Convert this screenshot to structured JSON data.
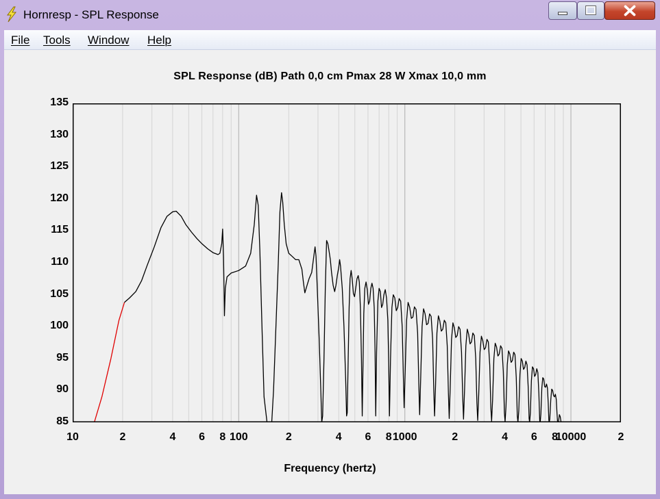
{
  "window": {
    "title": "Hornresp - SPL Response"
  },
  "titlebar_icons": [
    "lightning-icon",
    "minimize-icon",
    "maximize-icon",
    "close-icon"
  ],
  "menu": {
    "file": "File",
    "tools": "Tools",
    "window": "Window",
    "help": "Help"
  },
  "chart_data": {
    "type": "line",
    "title": "SPL Response (dB)   Path 0,0 cm   Pmax 28 W   Xmax 10,0 mm",
    "xlabel": "Frequency (hertz)",
    "ylabel": "",
    "x_scale": "log",
    "xlim": [
      10,
      20000
    ],
    "ylim": [
      85,
      135
    ],
    "grid": true,
    "y_ticks": [
      "135",
      "130",
      "125",
      "120",
      "115",
      "110",
      "105",
      "100",
      "95",
      "90",
      "85"
    ],
    "x_ticks": [
      {
        "value": 10,
        "label": "10"
      },
      {
        "value": 20,
        "label": "2"
      },
      {
        "value": 40,
        "label": "4"
      },
      {
        "value": 60,
        "label": "6"
      },
      {
        "value": 80,
        "label": "8"
      },
      {
        "value": 100,
        "label": "100"
      },
      {
        "value": 200,
        "label": "2"
      },
      {
        "value": 400,
        "label": "4"
      },
      {
        "value": 600,
        "label": "6"
      },
      {
        "value": 800,
        "label": "8"
      },
      {
        "value": 1000,
        "label": "1000"
      },
      {
        "value": 2000,
        "label": "2"
      },
      {
        "value": 4000,
        "label": "4"
      },
      {
        "value": 6000,
        "label": "6"
      },
      {
        "value": 8000,
        "label": "8"
      },
      {
        "value": 10000,
        "label": "10000"
      },
      {
        "value": 20000,
        "label": "2"
      }
    ],
    "series": [
      {
        "color": "#e00000",
        "points": [
          [
            13.5,
            85
          ],
          [
            15,
            89
          ],
          [
            17,
            95
          ],
          [
            19,
            101
          ],
          [
            20.5,
            103.8
          ]
        ]
      },
      {
        "color": "#000000",
        "points": [
          [
            20.5,
            103.8
          ],
          [
            22,
            104.5
          ],
          [
            24,
            105.5
          ],
          [
            26,
            107.2
          ],
          [
            28,
            109.5
          ],
          [
            31,
            112.5
          ],
          [
            34,
            115.5
          ],
          [
            37,
            117.3
          ],
          [
            40,
            118
          ],
          [
            42,
            118.1
          ],
          [
            45,
            117.3
          ],
          [
            48,
            116
          ],
          [
            52,
            114.8
          ],
          [
            56,
            113.8
          ],
          [
            60,
            113
          ],
          [
            65,
            112.2
          ],
          [
            70,
            111.6
          ],
          [
            75,
            111.3
          ],
          [
            77,
            111.5
          ],
          [
            79,
            113
          ],
          [
            80,
            115.3
          ],
          [
            81,
            111
          ],
          [
            82,
            101.7
          ],
          [
            83,
            106
          ],
          [
            85,
            107.8
          ],
          [
            90,
            108.4
          ],
          [
            100,
            108.8
          ],
          [
            110,
            109.5
          ],
          [
            118,
            111.5
          ],
          [
            124,
            116
          ],
          [
            128,
            120.6
          ],
          [
            131,
            119
          ],
          [
            134,
            112
          ],
          [
            138,
            100
          ],
          [
            142,
            89
          ],
          [
            148,
            85
          ],
          [
            155,
            84.8
          ],
          [
            158,
            85
          ],
          [
            162,
            90
          ],
          [
            168,
            101
          ],
          [
            173,
            110
          ],
          [
            177,
            118
          ],
          [
            181,
            121
          ],
          [
            184,
            119.5
          ],
          [
            188,
            116
          ],
          [
            193,
            113
          ],
          [
            200,
            111.5
          ],
          [
            210,
            111
          ],
          [
            220,
            110.5
          ],
          [
            230,
            110.5
          ],
          [
            240,
            109
          ],
          [
            245,
            107
          ],
          [
            250,
            105.3
          ],
          [
            258,
            106.5
          ],
          [
            265,
            107.5
          ],
          [
            275,
            108.5
          ],
          [
            283,
            111
          ],
          [
            288,
            112.5
          ],
          [
            292,
            111
          ],
          [
            297,
            106
          ],
          [
            305,
            98
          ],
          [
            312,
            90
          ],
          [
            316,
            85
          ],
          [
            320,
            86
          ],
          [
            326,
            95
          ],
          [
            332,
            106
          ],
          [
            338,
            113.5
          ],
          [
            344,
            113
          ],
          [
            350,
            111.8
          ],
          [
            356,
            110.5
          ],
          [
            362,
            108.5
          ],
          [
            370,
            106.5
          ],
          [
            378,
            105.5
          ],
          [
            385,
            106.5
          ],
          [
            392,
            108
          ],
          [
            400,
            109.3
          ],
          [
            405,
            110.5
          ],
          [
            410,
            109.5
          ],
          [
            420,
            106
          ],
          [
            430,
            100
          ],
          [
            440,
            92
          ],
          [
            446,
            86
          ],
          [
            450,
            86.5
          ],
          [
            456,
            95
          ],
          [
            462,
            103
          ],
          [
            468,
            107.5
          ],
          [
            475,
            108.8
          ],
          [
            482,
            107.5
          ],
          [
            490,
            105.2
          ],
          [
            498,
            104.7
          ],
          [
            506,
            106
          ],
          [
            515,
            107.5
          ],
          [
            524,
            108
          ],
          [
            532,
            107
          ],
          [
            540,
            103
          ],
          [
            548,
            95
          ],
          [
            554,
            86
          ],
          [
            560,
            94
          ],
          [
            566,
            102
          ],
          [
            574,
            106
          ],
          [
            584,
            107
          ],
          [
            594,
            105.8
          ],
          [
            604,
            103.5
          ],
          [
            614,
            104
          ],
          [
            624,
            106
          ],
          [
            634,
            106.8
          ],
          [
            644,
            106
          ],
          [
            654,
            103
          ],
          [
            662,
            96
          ],
          [
            668,
            86
          ],
          [
            676,
            96
          ],
          [
            688,
            104
          ],
          [
            700,
            106
          ],
          [
            712,
            105.5
          ],
          [
            724,
            103
          ],
          [
            736,
            103.5
          ],
          [
            748,
            105
          ],
          [
            762,
            105.8
          ],
          [
            776,
            104.5
          ],
          [
            790,
            101
          ],
          [
            800,
            94
          ],
          [
            808,
            86
          ],
          [
            820,
            95
          ],
          [
            836,
            103
          ],
          [
            852,
            105
          ],
          [
            870,
            104.5
          ],
          [
            888,
            102.5
          ],
          [
            906,
            103
          ],
          [
            924,
            104.4
          ],
          [
            944,
            104
          ],
          [
            964,
            100
          ],
          [
            980,
            92
          ],
          [
            990,
            87.3
          ],
          [
            1005,
            93
          ],
          [
            1025,
            101
          ],
          [
            1046,
            103.8
          ],
          [
            1070,
            103
          ],
          [
            1094,
            101.3
          ],
          [
            1118,
            101.5
          ],
          [
            1142,
            103.1
          ],
          [
            1168,
            102.7
          ],
          [
            1194,
            99
          ],
          [
            1214,
            91
          ],
          [
            1228,
            86.2
          ],
          [
            1246,
            92
          ],
          [
            1270,
            100
          ],
          [
            1296,
            102.8
          ],
          [
            1324,
            102
          ],
          [
            1352,
            100.3
          ],
          [
            1380,
            100.5
          ],
          [
            1410,
            102
          ],
          [
            1440,
            101.6
          ],
          [
            1470,
            98
          ],
          [
            1494,
            90
          ],
          [
            1510,
            86
          ],
          [
            1532,
            91
          ],
          [
            1560,
            99
          ],
          [
            1592,
            101.7
          ],
          [
            1624,
            100.9
          ],
          [
            1658,
            99.3
          ],
          [
            1692,
            99.6
          ],
          [
            1728,
            101
          ],
          [
            1764,
            100.6
          ],
          [
            1800,
            97
          ],
          [
            1830,
            89.5
          ],
          [
            1850,
            85.6
          ],
          [
            1876,
            90.5
          ],
          [
            1910,
            98
          ],
          [
            1948,
            100.6
          ],
          [
            1986,
            99.8
          ],
          [
            2026,
            98.3
          ],
          [
            2066,
            98.6
          ],
          [
            2108,
            100
          ],
          [
            2150,
            99.6
          ],
          [
            2194,
            96
          ],
          [
            2232,
            88.8
          ],
          [
            2256,
            85.5
          ],
          [
            2288,
            90
          ],
          [
            2330,
            97
          ],
          [
            2376,
            99.6
          ],
          [
            2422,
            98.8
          ],
          [
            2470,
            97.3
          ],
          [
            2518,
            97.6
          ],
          [
            2568,
            99
          ],
          [
            2620,
            98.6
          ],
          [
            2672,
            95
          ],
          [
            2716,
            88
          ],
          [
            2746,
            85.3
          ],
          [
            2786,
            89.5
          ],
          [
            2836,
            96
          ],
          [
            2890,
            98.5
          ],
          [
            2946,
            97.8
          ],
          [
            3004,
            96.4
          ],
          [
            3062,
            96.7
          ],
          [
            3122,
            98
          ],
          [
            3182,
            97.6
          ],
          [
            3244,
            94
          ],
          [
            3296,
            87.2
          ],
          [
            3330,
            85.2
          ],
          [
            3376,
            88.5
          ],
          [
            3436,
            95
          ],
          [
            3500,
            97.4
          ],
          [
            3566,
            96.8
          ],
          [
            3634,
            95.4
          ],
          [
            3702,
            95.7
          ],
          [
            3772,
            97
          ],
          [
            3844,
            96.6
          ],
          [
            3916,
            93
          ],
          [
            3976,
            86.5
          ],
          [
            4014,
            85.1
          ],
          [
            4066,
            87.5
          ],
          [
            4136,
            94
          ],
          [
            4210,
            96.2
          ],
          [
            4286,
            95.7
          ],
          [
            4364,
            94.4
          ],
          [
            4442,
            94.7
          ],
          [
            4522,
            96
          ],
          [
            4604,
            95.6
          ],
          [
            4686,
            92
          ],
          [
            4754,
            86
          ],
          [
            4796,
            85
          ],
          [
            4854,
            86.8
          ],
          [
            4932,
            92.5
          ],
          [
            5014,
            95
          ],
          [
            5098,
            94.6
          ],
          [
            5182,
            93.3
          ],
          [
            5268,
            93.6
          ],
          [
            5356,
            94.6
          ],
          [
            5444,
            94
          ],
          [
            5530,
            90.5
          ],
          [
            5600,
            85.6
          ],
          [
            5640,
            85
          ],
          [
            5700,
            86.5
          ],
          [
            5780,
            91.5
          ],
          [
            5866,
            93.7
          ],
          [
            5954,
            93.4
          ],
          [
            6044,
            92.2
          ],
          [
            6136,
            92.5
          ],
          [
            6228,
            93.4
          ],
          [
            6322,
            92.8
          ],
          [
            6412,
            89.5
          ],
          [
            6486,
            85.3
          ],
          [
            6530,
            85
          ],
          [
            6594,
            86.3
          ],
          [
            6680,
            90.4
          ],
          [
            6768,
            92
          ],
          [
            6858,
            91.8
          ],
          [
            6948,
            90.6
          ],
          [
            7040,
            90.5
          ],
          [
            7130,
            91
          ],
          [
            7220,
            90.4
          ],
          [
            7300,
            88
          ],
          [
            7360,
            85.4
          ],
          [
            7400,
            85
          ],
          [
            7460,
            85.5
          ],
          [
            7560,
            88.5
          ],
          [
            7660,
            90.2
          ],
          [
            7760,
            90
          ],
          [
            7860,
            89.2
          ],
          [
            7960,
            89
          ],
          [
            8060,
            89.4
          ],
          [
            8160,
            88.6
          ],
          [
            8240,
            86.5
          ],
          [
            8300,
            85.2
          ],
          [
            8340,
            85
          ],
          [
            8420,
            85.2
          ],
          [
            8520,
            86.2
          ],
          [
            8620,
            85.9
          ],
          [
            8700,
            85.2
          ],
          [
            8760,
            85
          ]
        ]
      }
    ]
  }
}
